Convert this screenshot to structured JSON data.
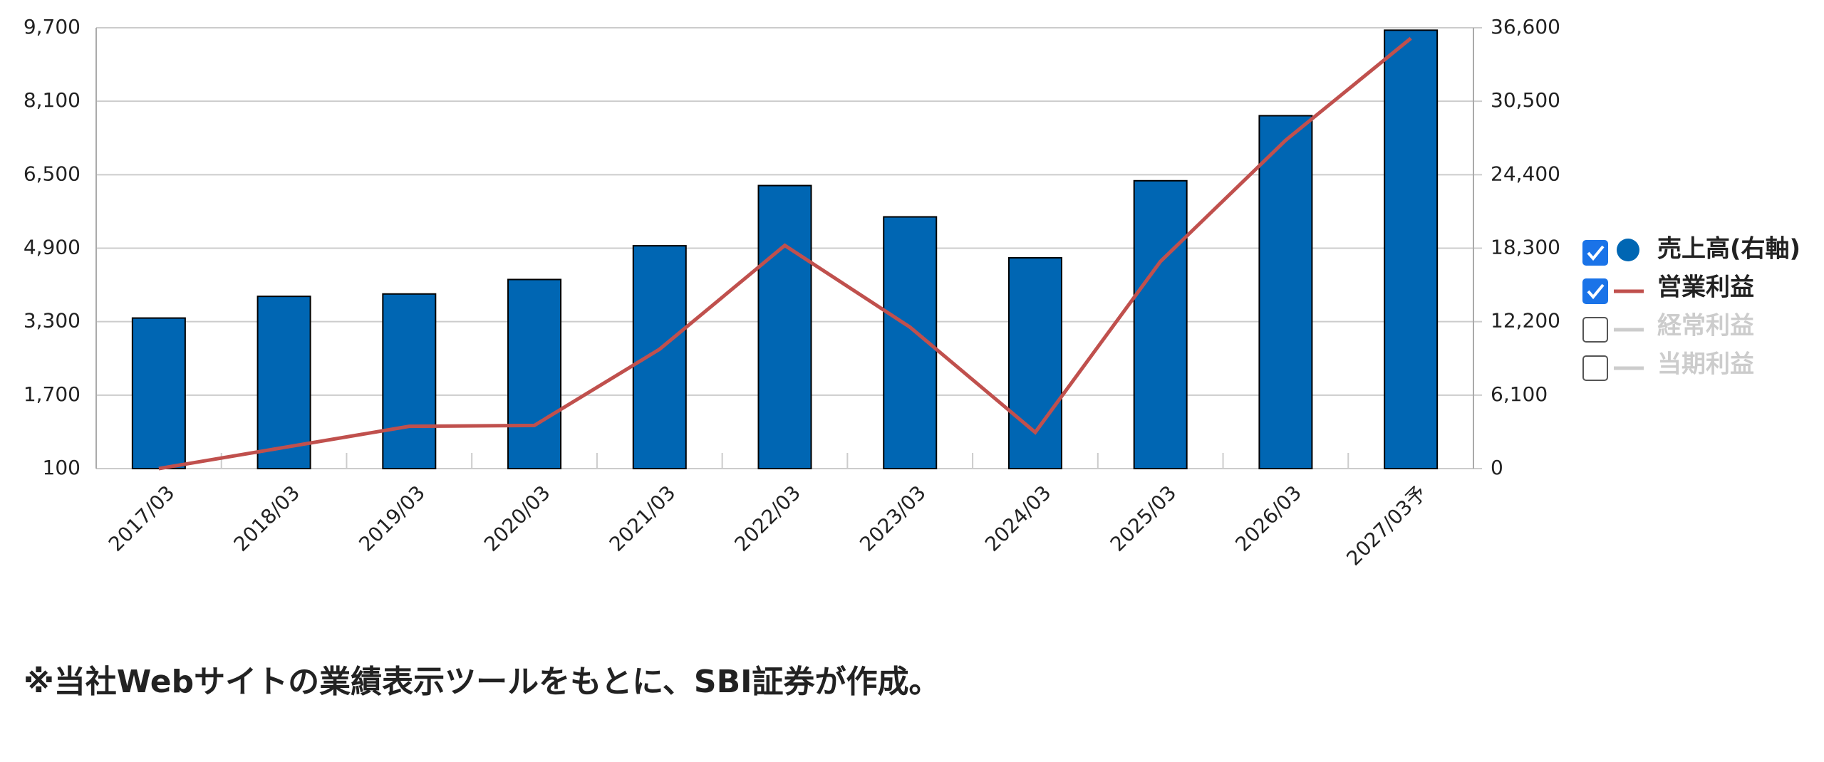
{
  "chart_data": {
    "type": "bar",
    "categories": [
      "2017/03",
      "2018/03",
      "2019/03",
      "2020/03",
      "2021/03",
      "2022/03",
      "2023/03",
      "2024/03",
      "2025/03",
      "2026/03",
      "2027/03予"
    ],
    "series": [
      {
        "name": "売上高(右軸)",
        "type": "bar",
        "axis": "y2",
        "color": "#0066b3",
        "visible": true,
        "values": [
          12500,
          14300,
          14500,
          15700,
          18500,
          23500,
          20900,
          17500,
          23900,
          29300,
          36400
        ]
      },
      {
        "name": "営業利益",
        "type": "line",
        "color": "#c0504d",
        "visible": true,
        "values": [
          100,
          560,
          1020,
          1040,
          2700,
          4960,
          3180,
          890,
          4610,
          7250,
          9470
        ]
      },
      {
        "name": "経常利益",
        "type": "line",
        "color": "#cccccc",
        "visible": false
      },
      {
        "name": "当期利益",
        "type": "line",
        "color": "#cccccc",
        "visible": false
      }
    ],
    "ylim": [
      100,
      9700
    ],
    "yticks": [
      100,
      {
        "value": 1700,
        "label": "1,700"
      },
      {
        "value": 3300,
        "label": "3,300"
      },
      {
        "value": 4900,
        "label": "4,900"
      },
      {
        "value": 6500,
        "label": "6,500"
      },
      {
        "value": 8100,
        "label": "8,100"
      },
      {
        "value": 9700,
        "label": "9,700"
      }
    ],
    "y2lim": [
      0,
      36600
    ],
    "y2ticks": [
      0,
      {
        "value": 6100,
        "label": "6,100"
      },
      {
        "value": 12200,
        "label": "12,200"
      },
      {
        "value": 18300,
        "label": "18,300"
      },
      {
        "value": 24400,
        "label": "24,400"
      },
      {
        "value": 30500,
        "label": "30,500"
      },
      {
        "value": 36600,
        "label": "36,600"
      }
    ],
    "grid": true,
    "legend": "right"
  },
  "footnote": "※当社Webサイトの業績表示ツールをもとに、SBI証券が作成。"
}
